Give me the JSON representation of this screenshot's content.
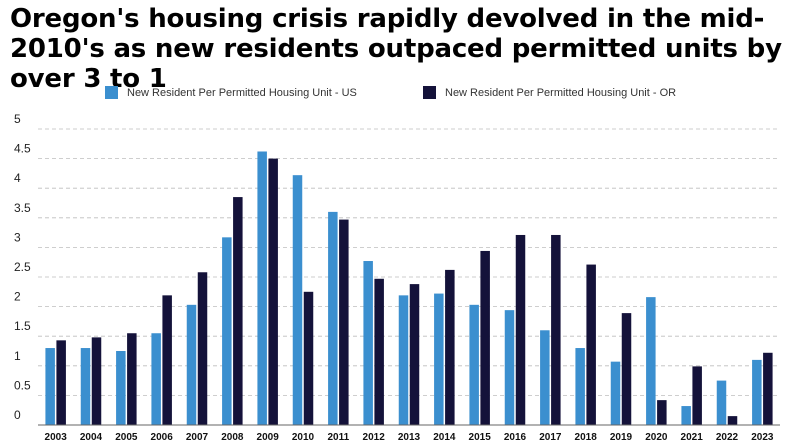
{
  "chart_data": {
    "type": "bar",
    "title": "Oregon's housing crisis rapidly devolved in the mid-2010's as new residents outpaced permitted units by over 3 to 1",
    "xlabel": "",
    "ylabel": "",
    "ylim": [
      0,
      5
    ],
    "yticks": [
      "0",
      "0.5",
      "1",
      "1.5",
      "2",
      "2.5",
      "3",
      "3.5",
      "4",
      "4.5",
      "5"
    ],
    "grid": true,
    "legend_position": "top",
    "categories": [
      "2003",
      "2004",
      "2005",
      "2006",
      "2007",
      "2008",
      "2009",
      "2010",
      "2011",
      "2012",
      "2013",
      "2014",
      "2015",
      "2016",
      "2017",
      "2018",
      "2019",
      "2020",
      "2021",
      "2022",
      "2023"
    ],
    "series": [
      {
        "name": "New Resident Per Permitted Housing Unit - US",
        "color": "#3B8FCF",
        "values": [
          1.3,
          1.3,
          1.25,
          1.55,
          2.03,
          3.17,
          4.62,
          4.22,
          3.6,
          2.77,
          2.19,
          2.22,
          2.03,
          1.94,
          1.6,
          1.3,
          1.07,
          2.16,
          0.32,
          0.75,
          1.1
        ]
      },
      {
        "name": "New Resident Per Permitted Housing Unit - OR",
        "color": "#14123A",
        "values": [
          1.43,
          1.48,
          1.55,
          2.19,
          2.58,
          3.85,
          4.5,
          2.25,
          3.47,
          2.47,
          2.38,
          2.62,
          2.94,
          3.21,
          3.21,
          2.71,
          1.89,
          0.42,
          0.99,
          0.15,
          1.22
        ]
      }
    ]
  }
}
